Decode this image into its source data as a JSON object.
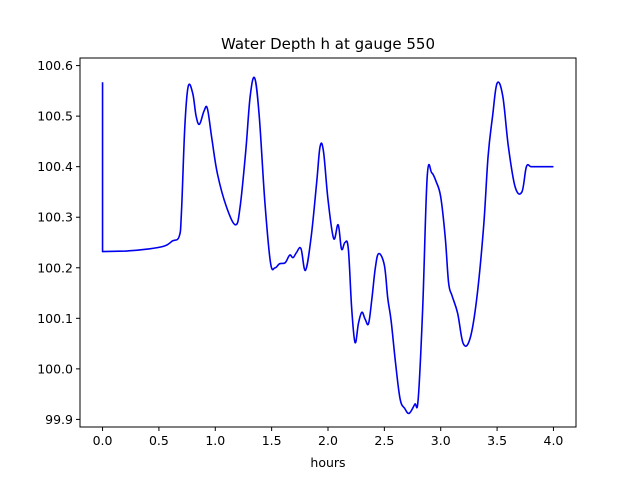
{
  "chart_data": {
    "type": "line",
    "title": "Water Depth h at gauge 550",
    "xlabel": "hours",
    "ylabel": "",
    "xlim": [
      -0.2,
      4.2
    ],
    "ylim": [
      99.885,
      100.615
    ],
    "xticks": [
      0.0,
      0.5,
      1.0,
      1.5,
      2.0,
      2.5,
      3.0,
      3.5,
      4.0
    ],
    "xtick_labels": [
      "0.0",
      "0.5",
      "1.0",
      "1.5",
      "2.0",
      "2.5",
      "3.0",
      "3.5",
      "4.0"
    ],
    "yticks": [
      99.9,
      100.0,
      100.1,
      100.2,
      100.3,
      100.4,
      100.5,
      100.6
    ],
    "ytick_labels": [
      "99.9",
      "100.0",
      "100.1",
      "100.2",
      "100.3",
      "100.4",
      "100.5",
      "100.6"
    ],
    "grid": false,
    "legend": "none",
    "series": [
      {
        "color": "#0000ee",
        "x": [
          0.0,
          0.0,
          0.0,
          0.2,
          0.4,
          0.55,
          0.62,
          0.68,
          0.7,
          0.73,
          0.76,
          0.8,
          0.83,
          0.86,
          0.9,
          0.93,
          0.97,
          1.02,
          1.1,
          1.18,
          1.22,
          1.27,
          1.31,
          1.35,
          1.39,
          1.44,
          1.49,
          1.53,
          1.57,
          1.62,
          1.66,
          1.69,
          1.72,
          1.76,
          1.8,
          1.85,
          1.9,
          1.93,
          1.96,
          2.0,
          2.05,
          2.09,
          2.12,
          2.15,
          2.18,
          2.21,
          2.24,
          2.27,
          2.3,
          2.33,
          2.36,
          2.39,
          2.42,
          2.45,
          2.5,
          2.53,
          2.56,
          2.6,
          2.64,
          2.68,
          2.72,
          2.77,
          2.8,
          2.84,
          2.88,
          2.92,
          2.96,
          3.0,
          3.04,
          3.07,
          3.1,
          3.15,
          3.2,
          3.26,
          3.32,
          3.38,
          3.42,
          3.46,
          3.5,
          3.55,
          3.6,
          3.66,
          3.72,
          3.76,
          3.8,
          3.85,
          3.9,
          3.94,
          3.97,
          4.0
        ],
        "values": [
          100.567,
          100.35,
          100.232,
          100.233,
          100.237,
          100.243,
          100.253,
          100.262,
          100.31,
          100.48,
          100.559,
          100.545,
          100.5,
          100.484,
          100.51,
          100.515,
          100.455,
          100.385,
          100.32,
          100.285,
          100.32,
          100.43,
          100.54,
          100.575,
          100.5,
          100.33,
          100.21,
          100.2,
          100.208,
          100.21,
          100.225,
          100.22,
          100.23,
          100.238,
          100.195,
          100.26,
          100.37,
          100.44,
          100.43,
          100.335,
          100.258,
          100.285,
          100.237,
          100.25,
          100.238,
          100.12,
          100.052,
          100.09,
          100.112,
          100.098,
          100.09,
          100.14,
          100.2,
          100.228,
          100.205,
          100.14,
          100.095,
          100.01,
          99.94,
          99.922,
          99.912,
          99.93,
          99.94,
          100.12,
          100.38,
          100.388,
          100.37,
          100.34,
          100.26,
          100.17,
          100.145,
          100.11,
          100.05,
          100.06,
          100.14,
          100.28,
          100.42,
          100.5,
          100.565,
          100.54,
          100.44,
          100.36,
          100.35,
          100.4,
          100.4,
          100.4,
          100.4,
          100.4,
          100.4,
          100.4
        ]
      }
    ]
  }
}
